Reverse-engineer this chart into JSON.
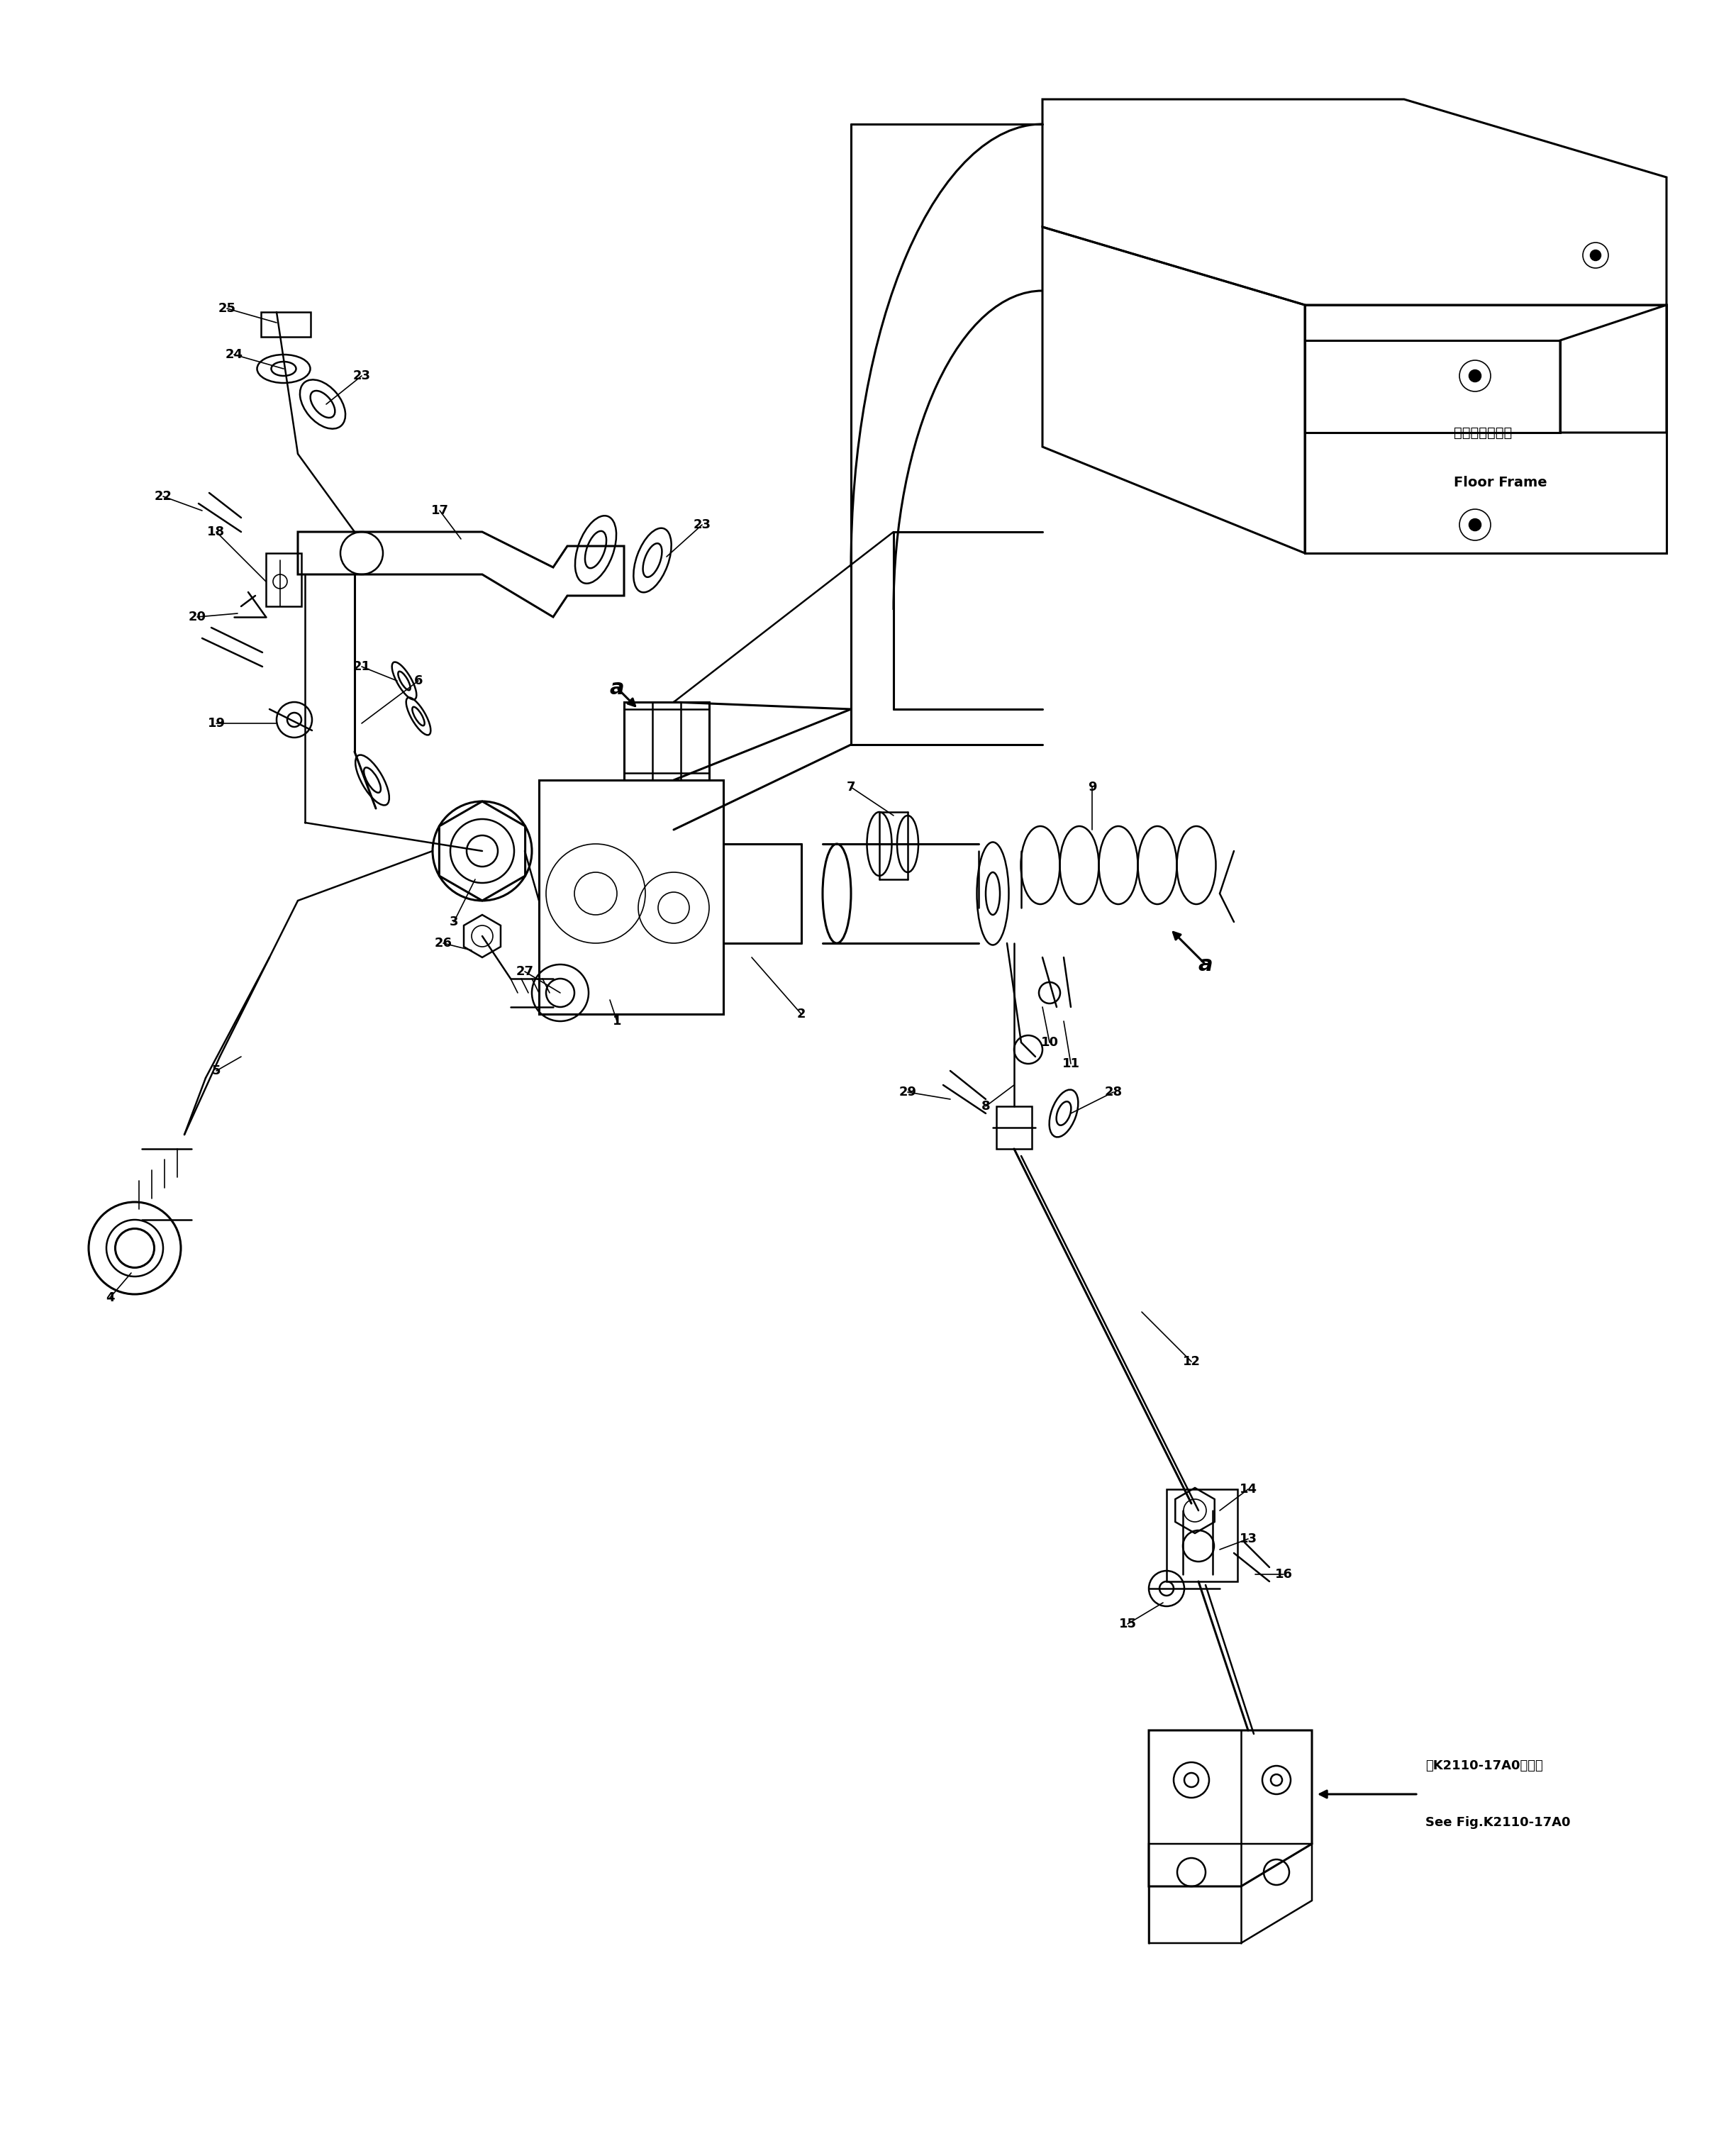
{
  "bg_color": "#ffffff",
  "line_color": "#000000",
  "fig_width": 24.48,
  "fig_height": 30.12,
  "lw": 1.8,
  "lw2": 2.2,
  "lw3": 1.2,
  "fs_label": 13,
  "fs_ref": 13,
  "fs_frame": 14,
  "fs_a": 22,
  "floor_frame_jp": "フロアフレーム",
  "floor_frame_en": "Floor Frame",
  "see_fig_jp": "第K2110-17A0図参照",
  "see_fig_en": "See Fig.K2110-17A0"
}
